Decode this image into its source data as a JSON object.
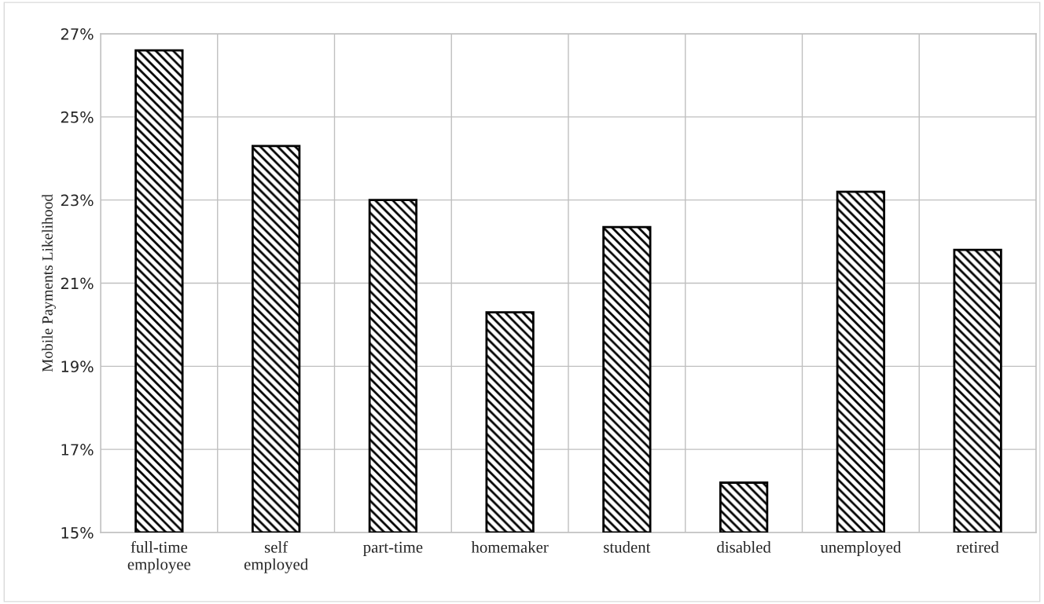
{
  "chart_data": {
    "type": "bar",
    "ylabel": "Mobile Payments Likelihood",
    "categories": [
      "full-time\nemployee",
      "self\nemployed",
      "part-time",
      "homemaker",
      "student",
      "disabled",
      "unemployed",
      "retired"
    ],
    "values": [
      26.6,
      24.3,
      23.0,
      20.3,
      22.35,
      16.2,
      23.2,
      21.8
    ],
    "color": "#000000",
    "ylim": [
      15,
      27
    ],
    "yticks": [
      {
        "value": 15,
        "label": "15%"
      },
      {
        "value": 17,
        "label": "17%"
      },
      {
        "value": 19,
        "label": "19%"
      },
      {
        "value": 21,
        "label": "21%"
      },
      {
        "value": 23,
        "label": "23%"
      },
      {
        "value": 25,
        "label": "25%"
      },
      {
        "value": 27,
        "label": "27%"
      }
    ],
    "grid": true
  }
}
